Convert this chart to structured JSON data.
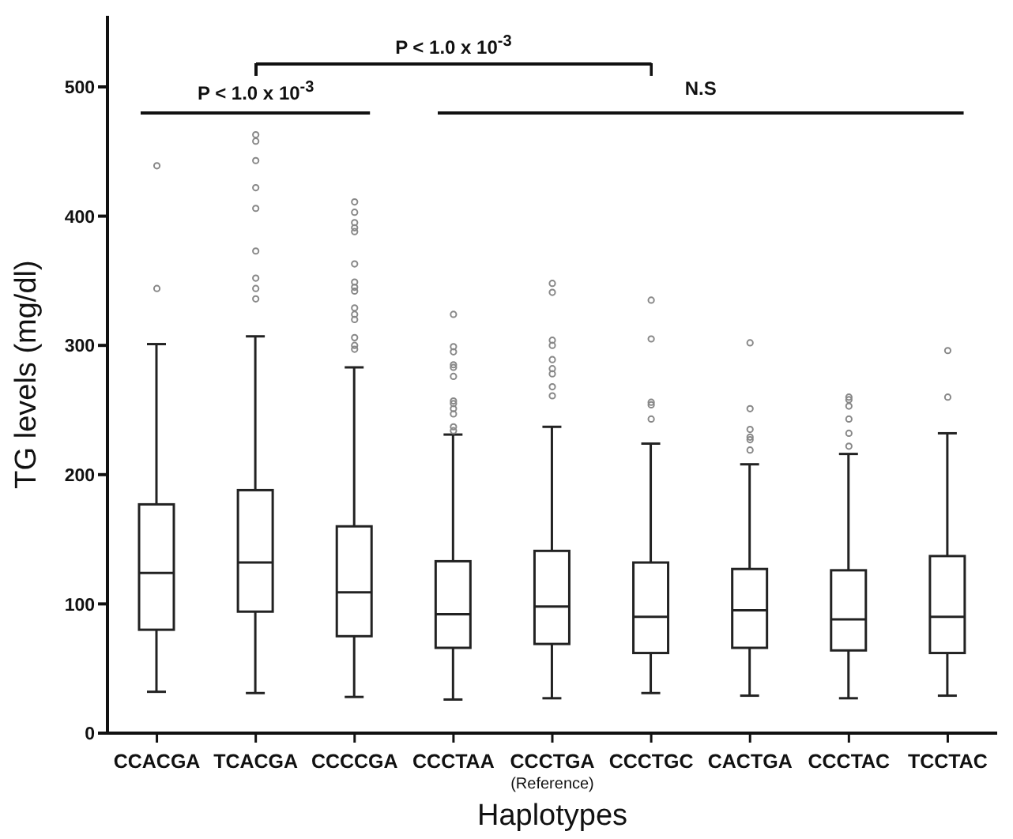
{
  "chart_data": {
    "type": "box",
    "xlabel": "Haplotypes",
    "ylabel": "TG levels (mg/dl)",
    "color": "#222222",
    "categories": [
      "CCACGA",
      "TCACGA",
      "CCCCGA",
      "CCCTAA",
      "CCCTGA\n(Reference)",
      "CCCTGC",
      "CACTGA",
      "CCCTAC",
      "TCCTAC"
    ],
    "boxes": [
      {
        "low": 32,
        "q1": 80,
        "median": 124,
        "q3": 177,
        "high": 301,
        "outliers": [
          439,
          344
        ]
      },
      {
        "low": 31,
        "q1": 94,
        "median": 132,
        "q3": 188,
        "high": 307,
        "outliers": [
          463,
          458,
          443,
          422,
          406,
          373,
          352,
          344,
          336
        ]
      },
      {
        "low": 28,
        "q1": 75,
        "median": 109,
        "q3": 160,
        "high": 283,
        "outliers": [
          411,
          403,
          395,
          391,
          388,
          363,
          349,
          345,
          342,
          329,
          324,
          320,
          306,
          300,
          297
        ]
      },
      {
        "low": 26,
        "q1": 66,
        "median": 92,
        "q3": 133,
        "high": 231,
        "outliers": [
          324,
          299,
          295,
          285,
          283,
          276,
          257,
          255,
          251,
          247,
          237,
          234
        ]
      },
      {
        "low": 27,
        "q1": 69,
        "median": 98,
        "q3": 141,
        "high": 237,
        "outliers": [
          348,
          341,
          304,
          300,
          289,
          282,
          278,
          268,
          261
        ]
      },
      {
        "low": 31,
        "q1": 62,
        "median": 90,
        "q3": 132,
        "high": 224,
        "outliers": [
          335,
          305,
          256,
          254,
          243
        ]
      },
      {
        "low": 29,
        "q1": 66,
        "median": 95,
        "q3": 127,
        "high": 208,
        "outliers": [
          302,
          251,
          235,
          229,
          227,
          219
        ]
      },
      {
        "low": 27,
        "q1": 64,
        "median": 88,
        "q3": 126,
        "high": 216,
        "outliers": [
          260,
          258,
          253,
          243,
          232,
          222
        ]
      },
      {
        "low": 29,
        "q1": 62,
        "median": 90,
        "q3": 137,
        "high": 232,
        "outliers": [
          296,
          260
        ]
      }
    ],
    "ylim": [
      0,
      555
    ],
    "yticks": [
      0,
      100,
      200,
      300,
      400,
      500
    ],
    "annotations": [
      "P < 1.0 x 10$^{-3}$",
      "P < 1.0 x 10$^{-3}$",
      "N.S"
    ]
  }
}
